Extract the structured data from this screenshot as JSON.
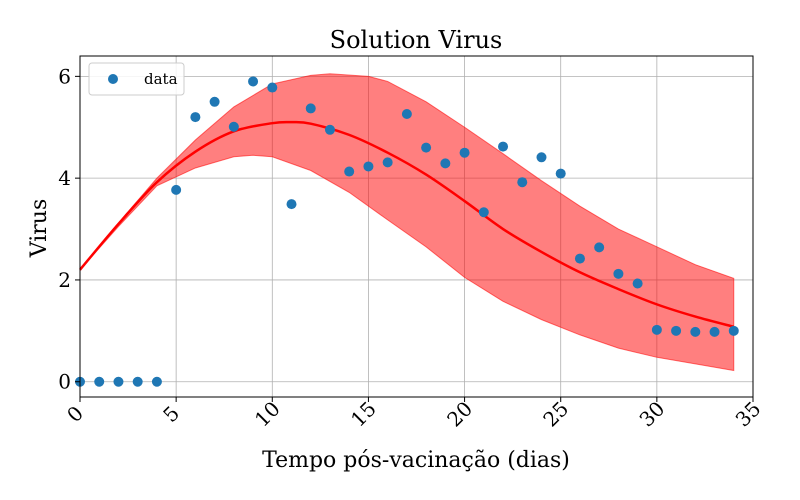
{
  "chart_data": {
    "type": "scatter",
    "title": "Solution Virus",
    "xlabel": "Tempo pós-vacinação (dias)",
    "ylabel": "Virus",
    "xlim": [
      0,
      35
    ],
    "ylim": [
      -0.3,
      6.4
    ],
    "xticks": [
      0,
      5,
      10,
      15,
      20,
      25,
      30,
      35
    ],
    "yticks": [
      0,
      2,
      4,
      6
    ],
    "grid": true,
    "legend_position": "top-left",
    "series": [
      {
        "name": "data",
        "kind": "scatter",
        "color": "#1f77b4",
        "points": [
          [
            0,
            0.0
          ],
          [
            1,
            0.0
          ],
          [
            2,
            0.0
          ],
          [
            3,
            0.0
          ],
          [
            4,
            0.0
          ],
          [
            5,
            3.77
          ],
          [
            6,
            5.2
          ],
          [
            7,
            5.5
          ],
          [
            8,
            5.01
          ],
          [
            9,
            5.9
          ],
          [
            10,
            5.78
          ],
          [
            11,
            3.49
          ],
          [
            12,
            5.37
          ],
          [
            13,
            4.95
          ],
          [
            14,
            4.13
          ],
          [
            15,
            4.23
          ],
          [
            16,
            4.31
          ],
          [
            17,
            5.26
          ],
          [
            18,
            4.6
          ],
          [
            19,
            4.29
          ],
          [
            20,
            4.5
          ],
          [
            21,
            3.33
          ],
          [
            22,
            4.62
          ],
          [
            23,
            3.92
          ],
          [
            24,
            4.41
          ],
          [
            25,
            4.09
          ],
          [
            26,
            2.42
          ],
          [
            27,
            2.64
          ],
          [
            28,
            2.12
          ],
          [
            29,
            1.93
          ],
          [
            30,
            1.02
          ],
          [
            31,
            1.0
          ],
          [
            32,
            0.98
          ],
          [
            33,
            0.98
          ],
          [
            34,
            1.0
          ]
        ]
      },
      {
        "kind": "line",
        "color": "#ff0000",
        "points": [
          [
            0,
            2.2
          ],
          [
            2,
            3.1
          ],
          [
            4,
            3.92
          ],
          [
            6,
            4.52
          ],
          [
            8,
            4.92
          ],
          [
            10,
            5.08
          ],
          [
            11,
            5.1
          ],
          [
            12,
            5.07
          ],
          [
            14,
            4.85
          ],
          [
            16,
            4.5
          ],
          [
            18,
            4.07
          ],
          [
            20,
            3.55
          ],
          [
            22,
            3.0
          ],
          [
            24,
            2.55
          ],
          [
            26,
            2.15
          ],
          [
            28,
            1.82
          ],
          [
            30,
            1.52
          ],
          [
            32,
            1.28
          ],
          [
            34,
            1.08
          ]
        ]
      },
      {
        "kind": "band",
        "color": "#ff0000",
        "upper": [
          [
            0,
            2.2
          ],
          [
            2,
            3.12
          ],
          [
            4,
            4.0
          ],
          [
            6,
            4.75
          ],
          [
            8,
            5.4
          ],
          [
            10,
            5.85
          ],
          [
            12,
            6.02
          ],
          [
            13,
            6.05
          ],
          [
            15,
            6.0
          ],
          [
            16,
            5.9
          ],
          [
            18,
            5.5
          ],
          [
            20,
            5.0
          ],
          [
            22,
            4.48
          ],
          [
            24,
            3.95
          ],
          [
            26,
            3.45
          ],
          [
            28,
            3.0
          ],
          [
            30,
            2.65
          ],
          [
            32,
            2.3
          ],
          [
            34,
            2.03
          ]
        ],
        "lower": [
          [
            0,
            2.2
          ],
          [
            2,
            3.05
          ],
          [
            4,
            3.85
          ],
          [
            6,
            4.2
          ],
          [
            8,
            4.42
          ],
          [
            9,
            4.45
          ],
          [
            10,
            4.42
          ],
          [
            12,
            4.15
          ],
          [
            14,
            3.72
          ],
          [
            16,
            3.18
          ],
          [
            18,
            2.65
          ],
          [
            20,
            2.05
          ],
          [
            22,
            1.58
          ],
          [
            24,
            1.22
          ],
          [
            26,
            0.92
          ],
          [
            28,
            0.66
          ],
          [
            30,
            0.48
          ],
          [
            32,
            0.35
          ],
          [
            34,
            0.22
          ]
        ]
      }
    ]
  }
}
